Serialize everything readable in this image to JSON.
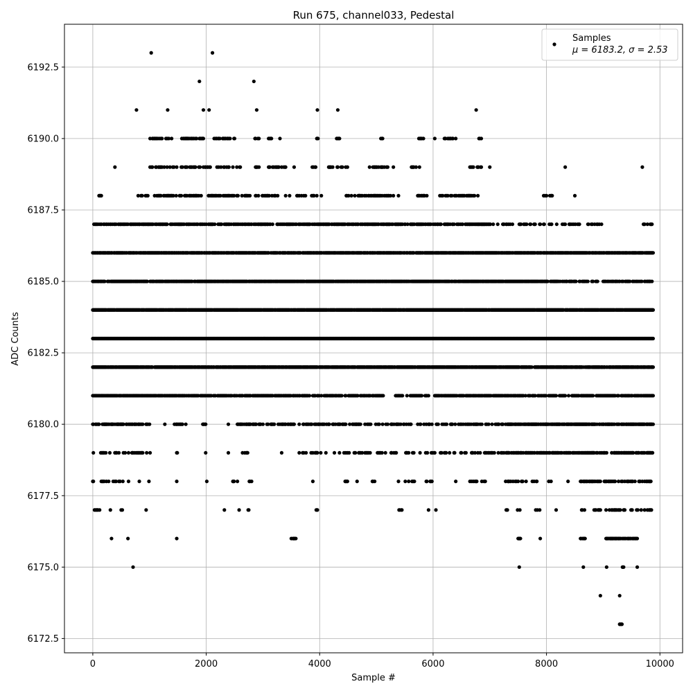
{
  "chart_data": {
    "type": "scatter",
    "title": "Run 675, channel033, Pedestal",
    "xlabel": "Sample #",
    "ylabel": "ADC Counts",
    "xlim": [
      -500,
      10400
    ],
    "ylim": [
      6172.0,
      6194.0
    ],
    "xticks": [
      0,
      2000,
      4000,
      6000,
      8000,
      10000
    ],
    "xtick_labels": [
      "0",
      "2000",
      "4000",
      "6000",
      "8000",
      "10000"
    ],
    "yticks": [
      6172.5,
      6175.0,
      6177.5,
      6180.0,
      6182.5,
      6185.0,
      6187.5,
      6190.0,
      6192.5
    ],
    "ytick_labels": [
      "6172.5",
      "6175.0",
      "6177.5",
      "6180.0",
      "6182.5",
      "6185.0",
      "6187.5",
      "6190.0",
      "6192.5"
    ],
    "grid": true,
    "legend": {
      "position": "top-right",
      "entries": [
        "Samples",
        "μ = 6183.2, σ = 2.53"
      ]
    },
    "marker_color": "#000000",
    "series": [
      {
        "name": "Samples",
        "level_density": [
          {
            "y": 6173,
            "segments": [
              [
                9280,
                9330,
                0.5
              ]
            ]
          },
          {
            "y": 6174,
            "segments": [
              [
                8950,
                8950,
                1
              ],
              [
                9290,
                9290,
                1
              ]
            ]
          },
          {
            "y": 6175,
            "segments": [
              [
                710,
                710,
                1
              ],
              [
                7520,
                7520,
                1
              ],
              [
                8650,
                8650,
                1
              ],
              [
                9060,
                9060,
                1
              ],
              [
                9340,
                9360,
                1
              ],
              [
                9600,
                9600,
                1
              ]
            ]
          },
          {
            "y": 6176,
            "segments": [
              [
                330,
                330,
                1
              ],
              [
                620,
                620,
                1
              ],
              [
                1480,
                1480,
                1
              ],
              [
                3500,
                3600,
                0.3
              ],
              [
                7500,
                7540,
                0.6
              ],
              [
                7890,
                7890,
                1
              ],
              [
                8600,
                8700,
                0.5
              ],
              [
                9050,
                9600,
                0.6
              ]
            ]
          },
          {
            "y": 6177,
            "segments": [
              [
                0,
                120,
                0.3
              ],
              [
                310,
                310,
                1
              ],
              [
                500,
                560,
                0.4
              ],
              [
                940,
                940,
                1
              ],
              [
                2320,
                2320,
                1
              ],
              [
                2580,
                2580,
                1
              ],
              [
                2730,
                2800,
                0.4
              ],
              [
                3880,
                3970,
                0.3
              ],
              [
                5350,
                5450,
                0.4
              ],
              [
                5920,
                5920,
                1
              ],
              [
                6050,
                6050,
                1
              ],
              [
                7270,
                7310,
                0.5
              ],
              [
                7440,
                7560,
                0.4
              ],
              [
                7780,
                7900,
                0.4
              ],
              [
                8170,
                8170,
                1
              ],
              [
                8620,
                9850,
                0.35
              ]
            ]
          },
          {
            "y": 6178,
            "segments": [
              [
                0,
                700,
                0.2
              ],
              [
                820,
                820,
                1
              ],
              [
                990,
                990,
                1
              ],
              [
                1480,
                1480,
                1
              ],
              [
                2010,
                2010,
                1
              ],
              [
                2460,
                2560,
                0.3
              ],
              [
                2750,
                2800,
                0.5
              ],
              [
                3880,
                3880,
                1
              ],
              [
                4420,
                4500,
                0.3
              ],
              [
                4650,
                4700,
                0.4
              ],
              [
                4920,
                4970,
                0.5
              ],
              [
                5390,
                5390,
                1
              ],
              [
                5500,
                5700,
                0.2
              ],
              [
                5880,
                5990,
                0.3
              ],
              [
                6400,
                6400,
                1
              ],
              [
                6640,
                6980,
                0.25
              ],
              [
                7280,
                7650,
                0.3
              ],
              [
                7700,
                7920,
                0.25
              ],
              [
                8030,
                8080,
                0.5
              ],
              [
                8380,
                8380,
                1
              ],
              [
                8600,
                9880,
                0.45
              ]
            ]
          },
          {
            "y": 6179,
            "segments": [
              [
                0,
                880,
                0.25
              ],
              [
                850,
                1020,
                0.3
              ],
              [
                1480,
                1500,
                0.5
              ],
              [
                1990,
                1990,
                1
              ],
              [
                2390,
                2390,
                1
              ],
              [
                2570,
                2730,
                0.5
              ],
              [
                3330,
                3330,
                1
              ],
              [
                3550,
                4300,
                0.2
              ],
              [
                4350,
                4900,
                0.2
              ],
              [
                5000,
                5700,
                0.2
              ],
              [
                5750,
                6700,
                0.3
              ],
              [
                6700,
                6900,
                0.2
              ],
              [
                6900,
                7300,
                0.3
              ],
              [
                7300,
                9880,
                0.5
              ]
            ]
          },
          {
            "y": 6180,
            "segments": [
              [
                0,
                1000,
                0.6
              ],
              [
                1270,
                1270,
                1
              ],
              [
                1400,
                1600,
                0.4
              ],
              [
                1600,
                1800,
                0.2
              ],
              [
                1940,
                1990,
                0.5
              ],
              [
                2340,
                2400,
                0.3
              ],
              [
                2550,
                3200,
                0.5
              ],
              [
                3200,
                5400,
                0.35
              ],
              [
                5400,
                6000,
                0.3
              ],
              [
                6000,
                6500,
                0.3
              ],
              [
                6500,
                7300,
                0.4
              ],
              [
                7300,
                9880,
                0.7
              ]
            ]
          },
          {
            "y": 6181,
            "segments": [
              [
                0,
                1200,
                0.8
              ],
              [
                1200,
                1900,
                0.6
              ],
              [
                1900,
                2700,
                0.55
              ],
              [
                2700,
                3200,
                0.7
              ],
              [
                3200,
                5150,
                0.5
              ],
              [
                5300,
                9880,
                0.6
              ]
            ]
          },
          {
            "y": 6182,
            "segments": [
              [
                0,
                9880,
                0.9
              ]
            ]
          },
          {
            "y": 6183,
            "segments": [
              [
                0,
                9880,
                1.0
              ]
            ]
          },
          {
            "y": 6184,
            "segments": [
              [
                0,
                9880,
                0.95
              ]
            ]
          },
          {
            "y": 6185,
            "segments": [
              [
                0,
                8000,
                0.85
              ],
              [
                8000,
                8900,
                0.6
              ],
              [
                9000,
                9400,
                0.4
              ],
              [
                9400,
                9880,
                0.55
              ]
            ]
          },
          {
            "y": 6186,
            "segments": [
              [
                0,
                9880,
                0.8
              ]
            ]
          },
          {
            "y": 6187,
            "segments": [
              [
                0,
                3000,
                0.55
              ],
              [
                3000,
                7000,
                0.6
              ],
              [
                7000,
                7500,
                0.25
              ],
              [
                7500,
                9000,
                0.3
              ],
              [
                9700,
                9860,
                0.5
              ]
            ]
          },
          {
            "y": 6188,
            "segments": [
              [
                100,
                160,
                0.5
              ],
              [
                800,
                2800,
                0.45
              ],
              [
                2850,
                3300,
                0.35
              ],
              [
                3400,
                3500,
                0.3
              ],
              [
                3600,
                4050,
                0.3
              ],
              [
                4300,
                4700,
                0.25
              ],
              [
                4700,
                5100,
                0.35
              ],
              [
                5100,
                5400,
                0.3
              ],
              [
                5700,
                5900,
                0.3
              ],
              [
                6100,
                6800,
                0.3
              ],
              [
                7950,
                8100,
                0.5
              ],
              [
                8500,
                8500,
                1
              ]
            ]
          },
          {
            "y": 6189,
            "segments": [
              [
                390,
                390,
                1
              ],
              [
                1000,
                2400,
                0.35
              ],
              [
                2400,
                2600,
                0.3
              ],
              [
                2860,
                2940,
                0.5
              ],
              [
                3100,
                3400,
                0.4
              ],
              [
                3550,
                3550,
                1
              ],
              [
                3850,
                3950,
                0.4
              ],
              [
                4150,
                4500,
                0.35
              ],
              [
                4880,
                5200,
                0.35
              ],
              [
                5300,
                5300,
                1
              ],
              [
                5600,
                5800,
                0.5
              ],
              [
                6650,
                6850,
                0.4
              ],
              [
                7000,
                7000,
                1
              ],
              [
                8330,
                8330,
                1
              ],
              [
                9690,
                9690,
                1
              ]
            ]
          },
          {
            "y": 6190,
            "segments": [
              [
                950,
                1400,
                0.45
              ],
              [
                1550,
                1950,
                0.45
              ],
              [
                2130,
                2440,
                0.3
              ],
              [
                2480,
                2500,
                0.5
              ],
              [
                2860,
                2930,
                0.5
              ],
              [
                3100,
                3150,
                0.5
              ],
              [
                3300,
                3300,
                1
              ],
              [
                3950,
                3970,
                0.5
              ],
              [
                4300,
                4350,
                0.5
              ],
              [
                5080,
                5120,
                0.5
              ],
              [
                5750,
                5850,
                0.5
              ],
              [
                6030,
                6030,
                1
              ],
              [
                6200,
                6400,
                0.5
              ],
              [
                6790,
                6850,
                0.5
              ]
            ]
          },
          {
            "y": 6191,
            "segments": [
              [
                770,
                770,
                1
              ],
              [
                1320,
                1320,
                1
              ],
              [
                1950,
                1950,
                1
              ],
              [
                2050,
                2050,
                1
              ],
              [
                2890,
                2890,
                1
              ],
              [
                3960,
                3960,
                1
              ],
              [
                4320,
                4320,
                1
              ],
              [
                6760,
                6760,
                1
              ]
            ]
          },
          {
            "y": 6192,
            "segments": [
              [
                1880,
                1880,
                1
              ],
              [
                2840,
                2840,
                1
              ]
            ]
          },
          {
            "y": 6193,
            "segments": [
              [
                1030,
                1030,
                1
              ],
              [
                2110,
                2110,
                1
              ]
            ]
          }
        ]
      }
    ]
  }
}
